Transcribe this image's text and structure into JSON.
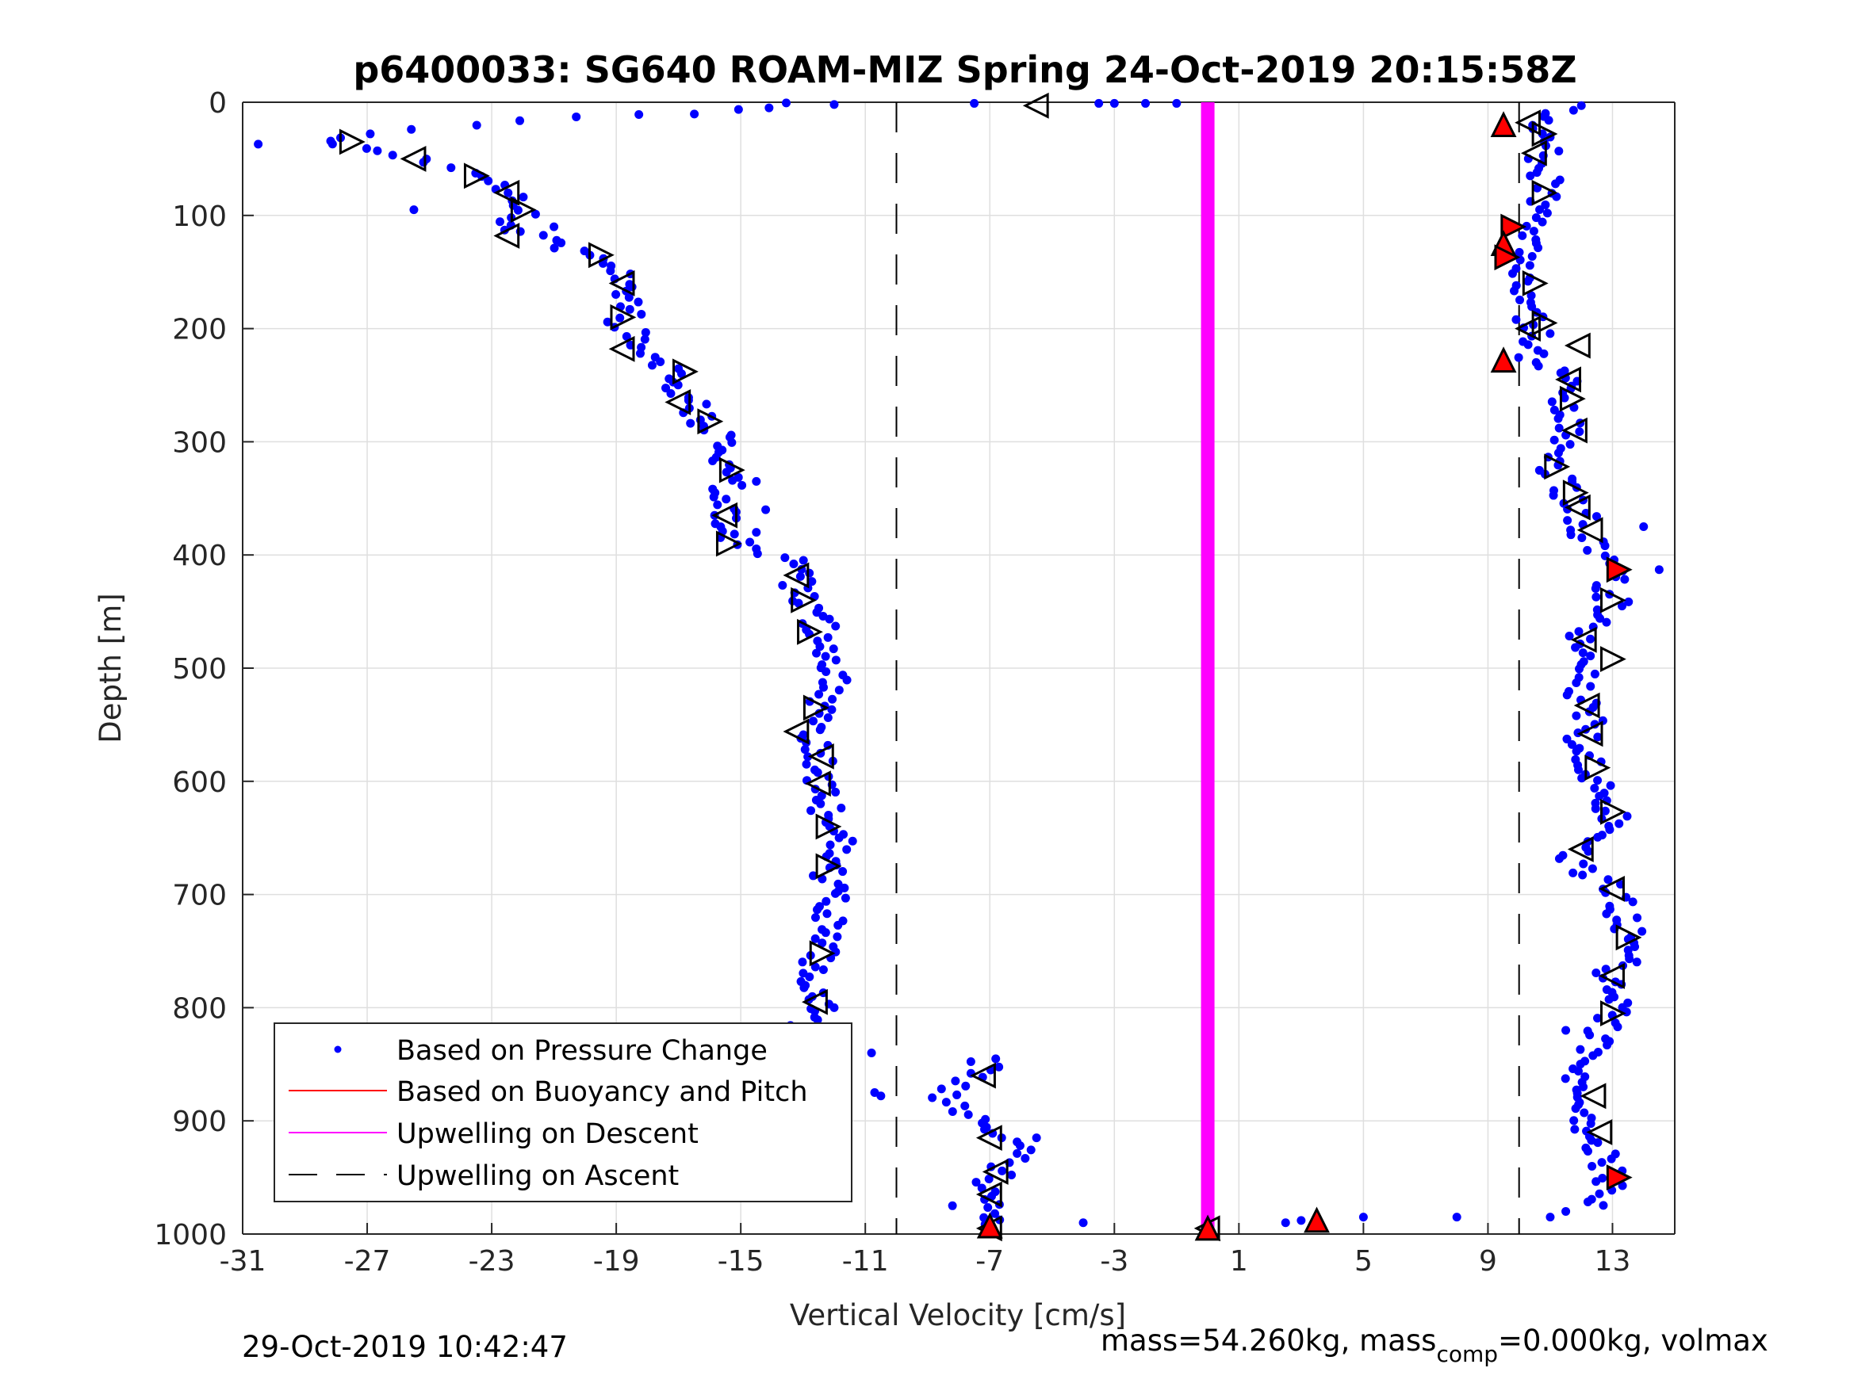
{
  "chart_data": {
    "type": "scatter",
    "title": "p6400033: SG640 ROAM-MIZ Spring 24-Oct-2019 20:15:58Z",
    "xlabel": "Vertical Velocity [cm/s]",
    "ylabel": "Depth [m]",
    "xlim": [
      -31,
      15
    ],
    "ylim": [
      0,
      1000
    ],
    "y_reversed": true,
    "grid": true,
    "xticks": [
      -31,
      -27,
      -23,
      -19,
      -15,
      -11,
      -7,
      -3,
      1,
      5,
      9,
      13
    ],
    "yticks": [
      0,
      100,
      200,
      300,
      400,
      500,
      600,
      700,
      800,
      900,
      1000
    ],
    "legend_position": "bottom-left",
    "colors": {
      "pressure": "#0000ff",
      "buoyancy": "#ff0000",
      "upwelling_descent": "#ff00ff",
      "upwelling_ascent": "#000000"
    },
    "series": [
      {
        "name": "Based on Pressure Change",
        "style": "dots",
        "descent_profile": [
          [
            -13.0,
            1
          ],
          [
            -16.0,
            10
          ],
          [
            -20.0,
            12
          ],
          [
            -24.0,
            20
          ],
          [
            -26.5,
            28
          ],
          [
            -28.5,
            35
          ],
          [
            -27.0,
            40
          ],
          [
            -25.5,
            50
          ],
          [
            -24.0,
            62
          ],
          [
            -22.5,
            80
          ],
          [
            -22.0,
            95
          ],
          [
            -22.5,
            112
          ],
          [
            -21.0,
            125
          ],
          [
            -19.5,
            138
          ],
          [
            -18.5,
            160
          ],
          [
            -18.5,
            180
          ],
          [
            -18.8,
            195
          ],
          [
            -18.3,
            210
          ],
          [
            -17.8,
            225
          ],
          [
            -17.0,
            240
          ],
          [
            -16.8,
            260
          ],
          [
            -16.2,
            280
          ],
          [
            -15.5,
            300
          ],
          [
            -15.5,
            320
          ],
          [
            -15.5,
            345
          ],
          [
            -15.3,
            365
          ],
          [
            -15.5,
            385
          ],
          [
            -14.5,
            395
          ],
          [
            -13.5,
            405
          ],
          [
            -13.2,
            420
          ],
          [
            -13.0,
            440
          ],
          [
            -12.5,
            460
          ],
          [
            -12.3,
            480
          ],
          [
            -12.0,
            500
          ],
          [
            -12.0,
            520
          ],
          [
            -12.5,
            540
          ],
          [
            -13.0,
            555
          ],
          [
            -12.6,
            575
          ],
          [
            -12.5,
            600
          ],
          [
            -12.3,
            620
          ],
          [
            -12.0,
            640
          ],
          [
            -11.8,
            660
          ],
          [
            -12.2,
            680
          ],
          [
            -12.0,
            700
          ],
          [
            -12.2,
            720
          ],
          [
            -12.4,
            740
          ],
          [
            -12.6,
            760
          ],
          [
            -12.8,
            780
          ],
          [
            -12.5,
            800
          ],
          [
            -13.0,
            815
          ],
          [
            -13.5,
            825
          ],
          [
            -14.0,
            835
          ]
        ],
        "deep_profile": [
          [
            -7.3,
            845
          ],
          [
            -7.0,
            855
          ],
          [
            -8.0,
            865
          ],
          [
            -8.5,
            880
          ],
          [
            -8.0,
            895
          ],
          [
            -7.0,
            905
          ],
          [
            -6.5,
            915
          ],
          [
            -6.0,
            925
          ],
          [
            -6.5,
            940
          ],
          [
            -7.0,
            955
          ],
          [
            -7.2,
            970
          ],
          [
            -7.0,
            985
          ],
          [
            -7.0,
            995
          ]
        ],
        "ascent_profile": [
          [
            12.2,
            975
          ],
          [
            12.7,
            965
          ],
          [
            13.0,
            950
          ],
          [
            12.6,
            930
          ],
          [
            12.3,
            910
          ],
          [
            12.0,
            890
          ],
          [
            12.0,
            870
          ],
          [
            12.0,
            850
          ],
          [
            12.5,
            830
          ],
          [
            13.0,
            810
          ],
          [
            13.2,
            790
          ],
          [
            13.0,
            770
          ],
          [
            13.5,
            750
          ],
          [
            13.5,
            730
          ],
          [
            13.2,
            710
          ],
          [
            13.0,
            695
          ],
          [
            12.0,
            680
          ],
          [
            11.5,
            665
          ],
          [
            12.5,
            650
          ],
          [
            13.0,
            630
          ],
          [
            12.5,
            610
          ],
          [
            12.2,
            590
          ],
          [
            12.0,
            570
          ],
          [
            12.2,
            550
          ],
          [
            12.0,
            535
          ],
          [
            11.9,
            520
          ],
          [
            12.0,
            505
          ],
          [
            12.5,
            490
          ],
          [
            12.0,
            475
          ],
          [
            12.5,
            460
          ],
          [
            13.0,
            445
          ],
          [
            13.0,
            430
          ],
          [
            13.0,
            415
          ],
          [
            12.5,
            400
          ],
          [
            12.2,
            385
          ],
          [
            12.0,
            370
          ],
          [
            11.8,
            355
          ],
          [
            11.5,
            340
          ],
          [
            11.2,
            325
          ],
          [
            11.0,
            310
          ],
          [
            11.3,
            295
          ],
          [
            11.7,
            280
          ],
          [
            11.6,
            265
          ],
          [
            11.6,
            250
          ],
          [
            11.5,
            240
          ],
          [
            10.5,
            230
          ],
          [
            10.6,
            215
          ],
          [
            10.5,
            200
          ],
          [
            10.3,
            185
          ],
          [
            10.2,
            170
          ],
          [
            10.1,
            155
          ],
          [
            10.1,
            140
          ],
          [
            10.3,
            125
          ],
          [
            10.6,
            110
          ],
          [
            10.8,
            95
          ],
          [
            10.8,
            80
          ],
          [
            10.8,
            65
          ],
          [
            10.8,
            50
          ],
          [
            10.8,
            35
          ],
          [
            10.5,
            20
          ],
          [
            10.8,
            10
          ],
          [
            12.0,
            3
          ]
        ],
        "isolated_points": [
          [
            -30.5,
            37
          ],
          [
            -12.0,
            2
          ],
          [
            -7.5,
            1
          ],
          [
            -3.5,
            1
          ],
          [
            -3.0,
            1
          ],
          [
            -2.0,
            1
          ],
          [
            -1.0,
            1
          ],
          [
            -10.8,
            840
          ],
          [
            -10.7,
            875
          ],
          [
            -10.5,
            878
          ],
          [
            -8.2,
            975
          ],
          [
            -4.0,
            990
          ],
          [
            -5.5,
            915
          ],
          [
            -12.0,
            800
          ],
          [
            -14.5,
            335
          ],
          [
            -14.2,
            360
          ],
          [
            -14.5,
            380
          ],
          [
            -21.0,
            110
          ],
          [
            -25.5,
            95
          ],
          [
            14.5,
            413
          ],
          [
            14.0,
            375
          ],
          [
            11.5,
            820
          ],
          [
            11.0,
            985
          ],
          [
            11.5,
            980
          ],
          [
            5.0,
            985
          ],
          [
            8.0,
            985
          ],
          [
            3.0,
            988
          ],
          [
            2.5,
            990
          ]
        ]
      },
      {
        "name": "Based on Buoyancy and Pitch",
        "style": "line",
        "values": []
      },
      {
        "name": "Upwelling on Descent",
        "style": "thick-line",
        "x": 0,
        "y_range": [
          0,
          1000
        ]
      },
      {
        "name": "Upwelling on Ascent",
        "style": "dashed-line",
        "x_values": [
          -10,
          10
        ]
      }
    ],
    "triangle_markers": {
      "open_black": [
        [
          -5.5,
          3,
          "left"
        ],
        [
          -27.5,
          35,
          "right"
        ],
        [
          -25.5,
          50,
          "left"
        ],
        [
          -23.5,
          65,
          "right"
        ],
        [
          -22.5,
          80,
          "left"
        ],
        [
          -22.0,
          95,
          "right"
        ],
        [
          -22.5,
          118,
          "left"
        ],
        [
          -19.5,
          135,
          "right"
        ],
        [
          -18.8,
          160,
          "left"
        ],
        [
          -18.8,
          190,
          "right"
        ],
        [
          -18.8,
          218,
          "left"
        ],
        [
          -16.8,
          238,
          "right"
        ],
        [
          -17.0,
          265,
          "left"
        ],
        [
          -16.0,
          282,
          "right"
        ],
        [
          -15.3,
          325,
          "right"
        ],
        [
          -15.5,
          365,
          "left"
        ],
        [
          -15.4,
          390,
          "right"
        ],
        [
          -13.2,
          418,
          "left"
        ],
        [
          -13.0,
          440,
          "right"
        ],
        [
          -12.8,
          468,
          "right"
        ],
        [
          -12.6,
          535,
          "right"
        ],
        [
          -13.2,
          556,
          "left"
        ],
        [
          -12.4,
          578,
          "left"
        ],
        [
          -12.5,
          602,
          "left"
        ],
        [
          -12.2,
          640,
          "right"
        ],
        [
          -12.2,
          675,
          "right"
        ],
        [
          -12.4,
          752,
          "right"
        ],
        [
          -12.6,
          795,
          "left"
        ],
        [
          -7.2,
          860,
          "left"
        ],
        [
          -7.0,
          915,
          "left"
        ],
        [
          -6.8,
          945,
          "left"
        ],
        [
          -7.0,
          965,
          "left"
        ],
        [
          -7.0,
          995,
          "left"
        ],
        [
          10.3,
          18,
          "left"
        ],
        [
          10.8,
          28,
          "right"
        ],
        [
          10.5,
          45,
          "left"
        ],
        [
          10.8,
          80,
          "right"
        ],
        [
          10.5,
          160,
          "right"
        ],
        [
          10.8,
          195,
          "right"
        ],
        [
          10.3,
          200,
          "left"
        ],
        [
          11.9,
          215,
          "left"
        ],
        [
          11.6,
          245,
          "left"
        ],
        [
          11.7,
          262,
          "right"
        ],
        [
          11.8,
          290,
          "left"
        ],
        [
          11.2,
          322,
          "right"
        ],
        [
          11.8,
          345,
          "right"
        ],
        [
          11.9,
          358,
          "left"
        ],
        [
          12.3,
          378,
          "left"
        ],
        [
          13.0,
          440,
          "right"
        ],
        [
          12.1,
          475,
          "left"
        ],
        [
          13.0,
          492,
          "right"
        ],
        [
          12.2,
          533,
          "left"
        ],
        [
          12.3,
          558,
          "left"
        ],
        [
          12.5,
          588,
          "right"
        ],
        [
          13.0,
          627,
          "right"
        ],
        [
          12.0,
          660,
          "left"
        ],
        [
          13.0,
          695,
          "left"
        ],
        [
          13.5,
          738,
          "right"
        ],
        [
          13.0,
          772,
          "left"
        ],
        [
          13.0,
          805,
          "right"
        ],
        [
          12.4,
          878,
          "left"
        ],
        [
          12.6,
          910,
          "left"
        ],
        [
          0,
          995,
          "left"
        ]
      ],
      "red_filled": [
        [
          9.5,
          20,
          "up"
        ],
        [
          9.8,
          110,
          "right"
        ],
        [
          9.5,
          125,
          "up"
        ],
        [
          9.6,
          137,
          "right"
        ],
        [
          9.5,
          228,
          "up"
        ],
        [
          13.2,
          413,
          "right"
        ],
        [
          13.2,
          950,
          "right"
        ],
        [
          3.5,
          988,
          "up"
        ],
        [
          -7.0,
          993,
          "up"
        ],
        [
          0,
          995,
          "up"
        ]
      ]
    }
  },
  "footer": {
    "timestamp": "29-Oct-2019 10:42:47",
    "mass_prefix": "mass=54.260kg, mass",
    "mass_sub": "comp",
    "mass_suffix": "=0.000kg, volmax"
  }
}
